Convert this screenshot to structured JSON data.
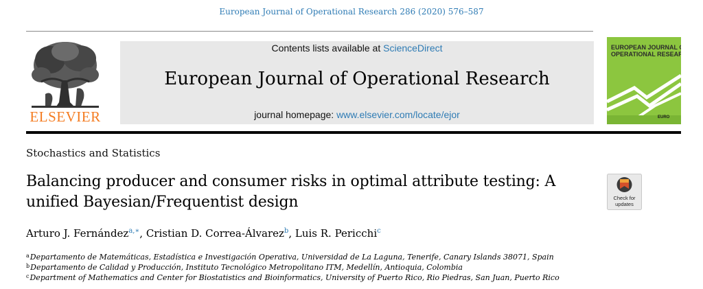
{
  "citation": "European Journal of Operational Research 286 (2020) 576–587",
  "publisher": {
    "name": "ELSEVIER",
    "brand_color": "#f47b20"
  },
  "banner": {
    "contents_prefix": "Contents lists available at ",
    "contents_link": "ScienceDirect",
    "journal_title": "European Journal of Operational Research",
    "homepage_prefix": "journal homepage: ",
    "homepage_link": "www.elsevier.com/locate/ejor"
  },
  "cover": {
    "title_line1": "EUROPEAN JOURNAL OF",
    "title_line2": "OPERATIONAL RESEARCH",
    "logo_text": "EURO",
    "green": "#8cc63f"
  },
  "section": "Stochastics and Statistics",
  "article_title_line1": "Balancing producer and consumer risks in optimal attribute testing: A",
  "article_title_line2": "unified Bayesian/Frequentist design",
  "crossmark": {
    "line1": "Check for",
    "line2": "updates"
  },
  "authors": [
    {
      "name": "Arturo J. Fernández",
      "marks": "a,∗"
    },
    {
      "name": "Cristian D. Correa-Álvarez",
      "marks": "b"
    },
    {
      "name": "Luis R. Pericchi",
      "marks": "c"
    }
  ],
  "affiliations": [
    {
      "label": "a",
      "text": "Departamento de Matemáticas, Estadística e Investigación Operativa, Universidad de La Laguna, Tenerife, Canary Islands 38071, Spain"
    },
    {
      "label": "b",
      "text": "Departamento de Calidad y Producción, Instituto Tecnológico Metropolitano ITM, Medellín, Antioquia, Colombia"
    },
    {
      "label": "c",
      "text": "Department of Mathematics and Center for Biostatistics and Bioinformatics, University of Puerto Rico, Rio Piedras, San Juan, Puerto Rico"
    }
  ],
  "link_color": "#2e7bb4"
}
